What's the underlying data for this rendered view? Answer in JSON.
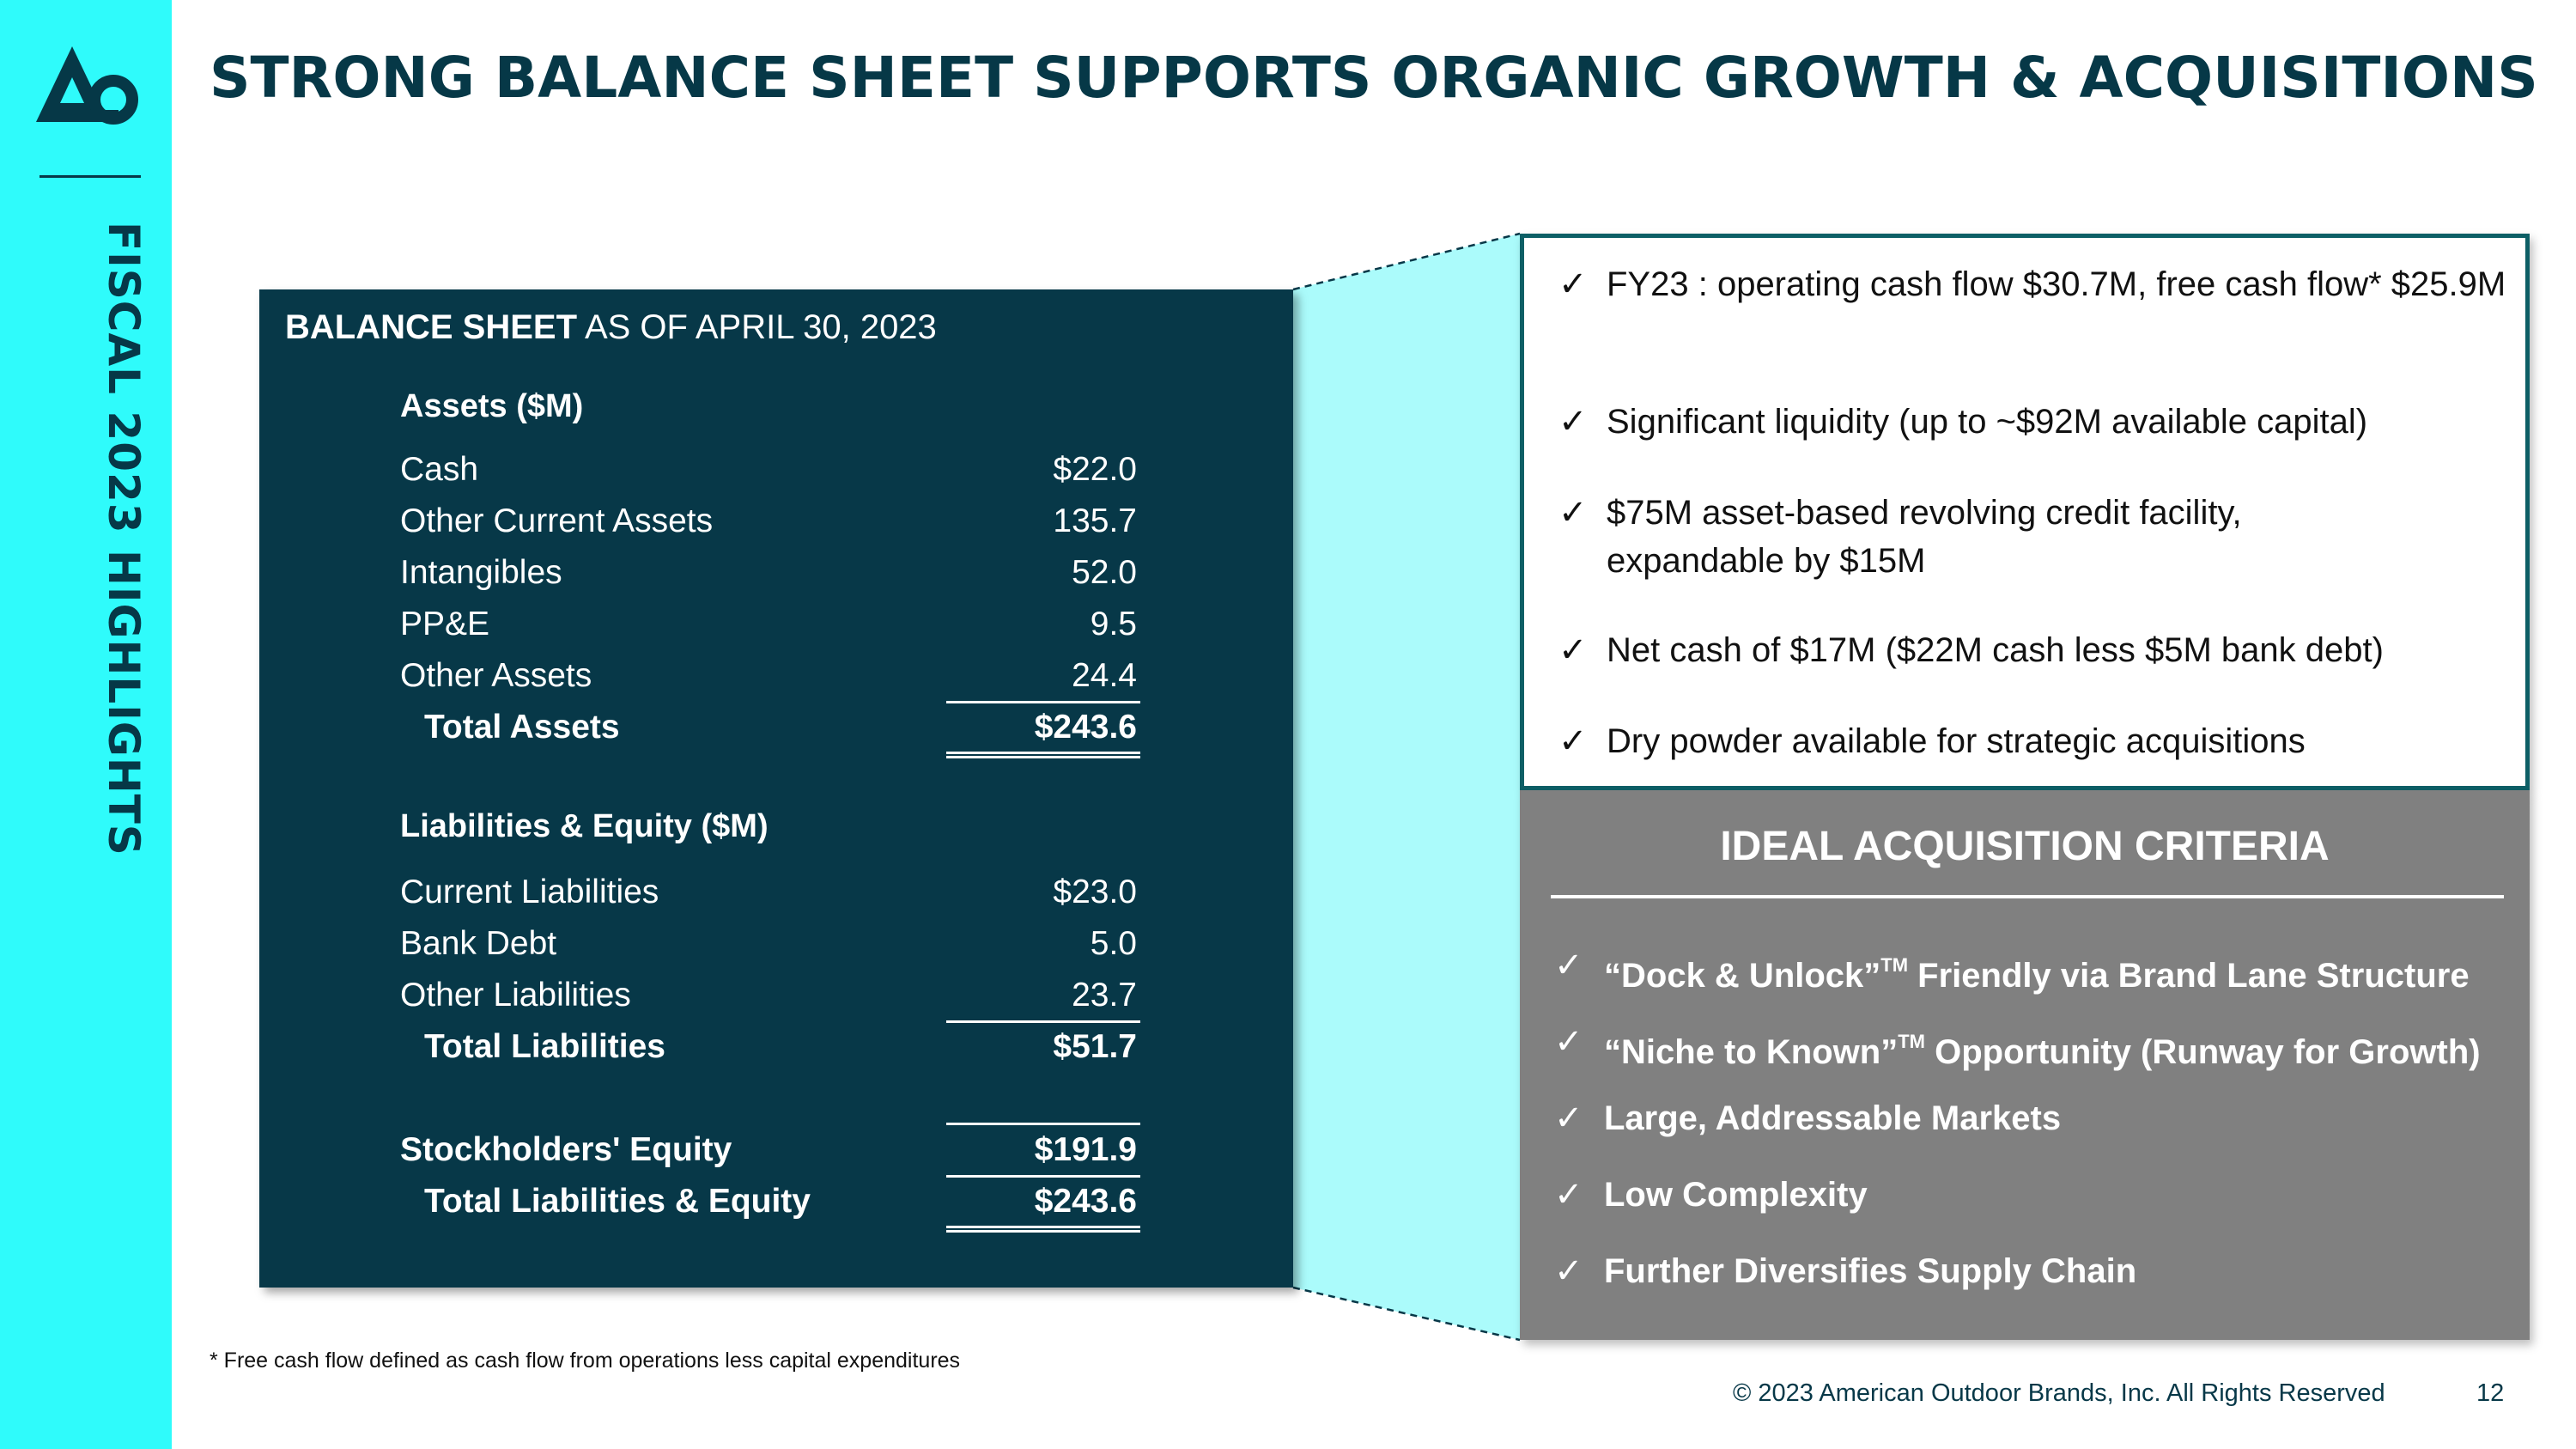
{
  "sidebar": {
    "label": "FISCAL 2023 HIGHLIGHTS"
  },
  "title": "STRONG BALANCE SHEET SUPPORTS ORGANIC GROWTH & ACQUISITIONS",
  "balance_sheet": {
    "heading_bold": "BALANCE SHEET",
    "heading_rest": " AS OF APRIL 30, 2023",
    "assets_header": "Assets ($M)",
    "assets": [
      {
        "label": "Cash",
        "value": "$22.0"
      },
      {
        "label": "Other Current Assets",
        "value": "135.7"
      },
      {
        "label": "Intangibles",
        "value": "52.0"
      },
      {
        "label": "PP&E",
        "value": "9.5"
      },
      {
        "label": "Other Assets",
        "value": "24.4"
      }
    ],
    "total_assets": {
      "label": "Total Assets",
      "value": "$243.6"
    },
    "liabilities_header": "Liabilities & Equity ($M)",
    "liabilities": [
      {
        "label": "Current Liabilities",
        "value": "$23.0"
      },
      {
        "label": "Bank Debt",
        "value": "5.0"
      },
      {
        "label": "Other Liabilities",
        "value": "23.7"
      }
    ],
    "total_liabilities": {
      "label": "Total Liabilities",
      "value": "$51.7"
    },
    "equity": {
      "label": "Stockholders' Equity",
      "value": "$191.9"
    },
    "total_liabilities_equity": {
      "label": "Total Liabilities & Equity",
      "value": "$243.6"
    }
  },
  "highlights": [
    {
      "check": "✓",
      "text": "FY23 : operating cash flow $30.7M, free cash flow* $25.9M"
    },
    {
      "check": "✓",
      "text": "Significant liquidity (up to ~$92M available capital)"
    },
    {
      "check": "✓",
      "text": "$75M asset-based revolving credit facility, expandable by $15M"
    },
    {
      "check": "✓",
      "text": "Net cash of $17M ($22M cash less $5M bank debt)"
    },
    {
      "check": "✓",
      "text": "Dry powder available for strategic acquisitions"
    }
  ],
  "acquisition": {
    "title": "IDEAL ACQUISITION CRITERIA",
    "items": [
      {
        "check": "✓",
        "pre": "“Dock & Unlock”",
        "tm": "TM",
        "post": " Friendly via Brand Lane Structure"
      },
      {
        "check": "✓",
        "pre": "“Niche to Known”",
        "tm": "TM",
        "post": " Opportunity (Runway for Growth)"
      },
      {
        "check": "✓",
        "pre": "Large, Addressable Markets",
        "tm": "",
        "post": ""
      },
      {
        "check": "✓",
        "pre": "Low Complexity",
        "tm": "",
        "post": ""
      },
      {
        "check": "✓",
        "pre": "Further Diversifies Supply Chain",
        "tm": "",
        "post": ""
      }
    ]
  },
  "footnote": "* Free cash flow defined as cash flow from operations less capital expenditures",
  "copyright": "© 2023 American Outdoor Brands, Inc. All Rights Reserved",
  "page_number": "12",
  "colors": {
    "navy": "#073848",
    "cyan": "#2ffbfb",
    "panel_cyan": "#abfbfb",
    "grey": "#808080",
    "teal_border": "#0d5f66"
  }
}
